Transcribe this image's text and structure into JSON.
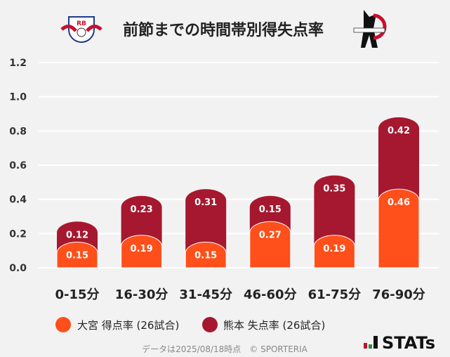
{
  "header": {
    "title": "前節までの時間帯別得失点率",
    "left_logo": "RB Omiya Ardija emblem",
    "right_logo": "Roasso Kumamoto emblem"
  },
  "chart_data": {
    "type": "bar",
    "stacked": true,
    "title": "前節までの時間帯別得失点率",
    "xlabel": "",
    "ylabel": "",
    "ylim": [
      0,
      1.2
    ],
    "yticks": [
      "0.0",
      "0.2",
      "0.4",
      "0.6",
      "0.8",
      "1.0",
      "1.2"
    ],
    "grid": true,
    "legend_position": "bottom-left",
    "categories": [
      "0-15分",
      "16-30分",
      "31-45分",
      "46-60分",
      "61-75分",
      "76-90分"
    ],
    "series": [
      {
        "name": "大宮 得点率 (26試合)",
        "color": "#ff4f1a",
        "values": [
          0.15,
          0.19,
          0.15,
          0.27,
          0.19,
          0.46
        ]
      },
      {
        "name": "熊本 失点率 (26試合)",
        "color": "#a6182f",
        "values": [
          0.12,
          0.23,
          0.31,
          0.15,
          0.35,
          0.42
        ]
      }
    ]
  },
  "footer": {
    "note": "データは2025/08/18時点　© SPORTERIA",
    "brand": "STATs"
  }
}
